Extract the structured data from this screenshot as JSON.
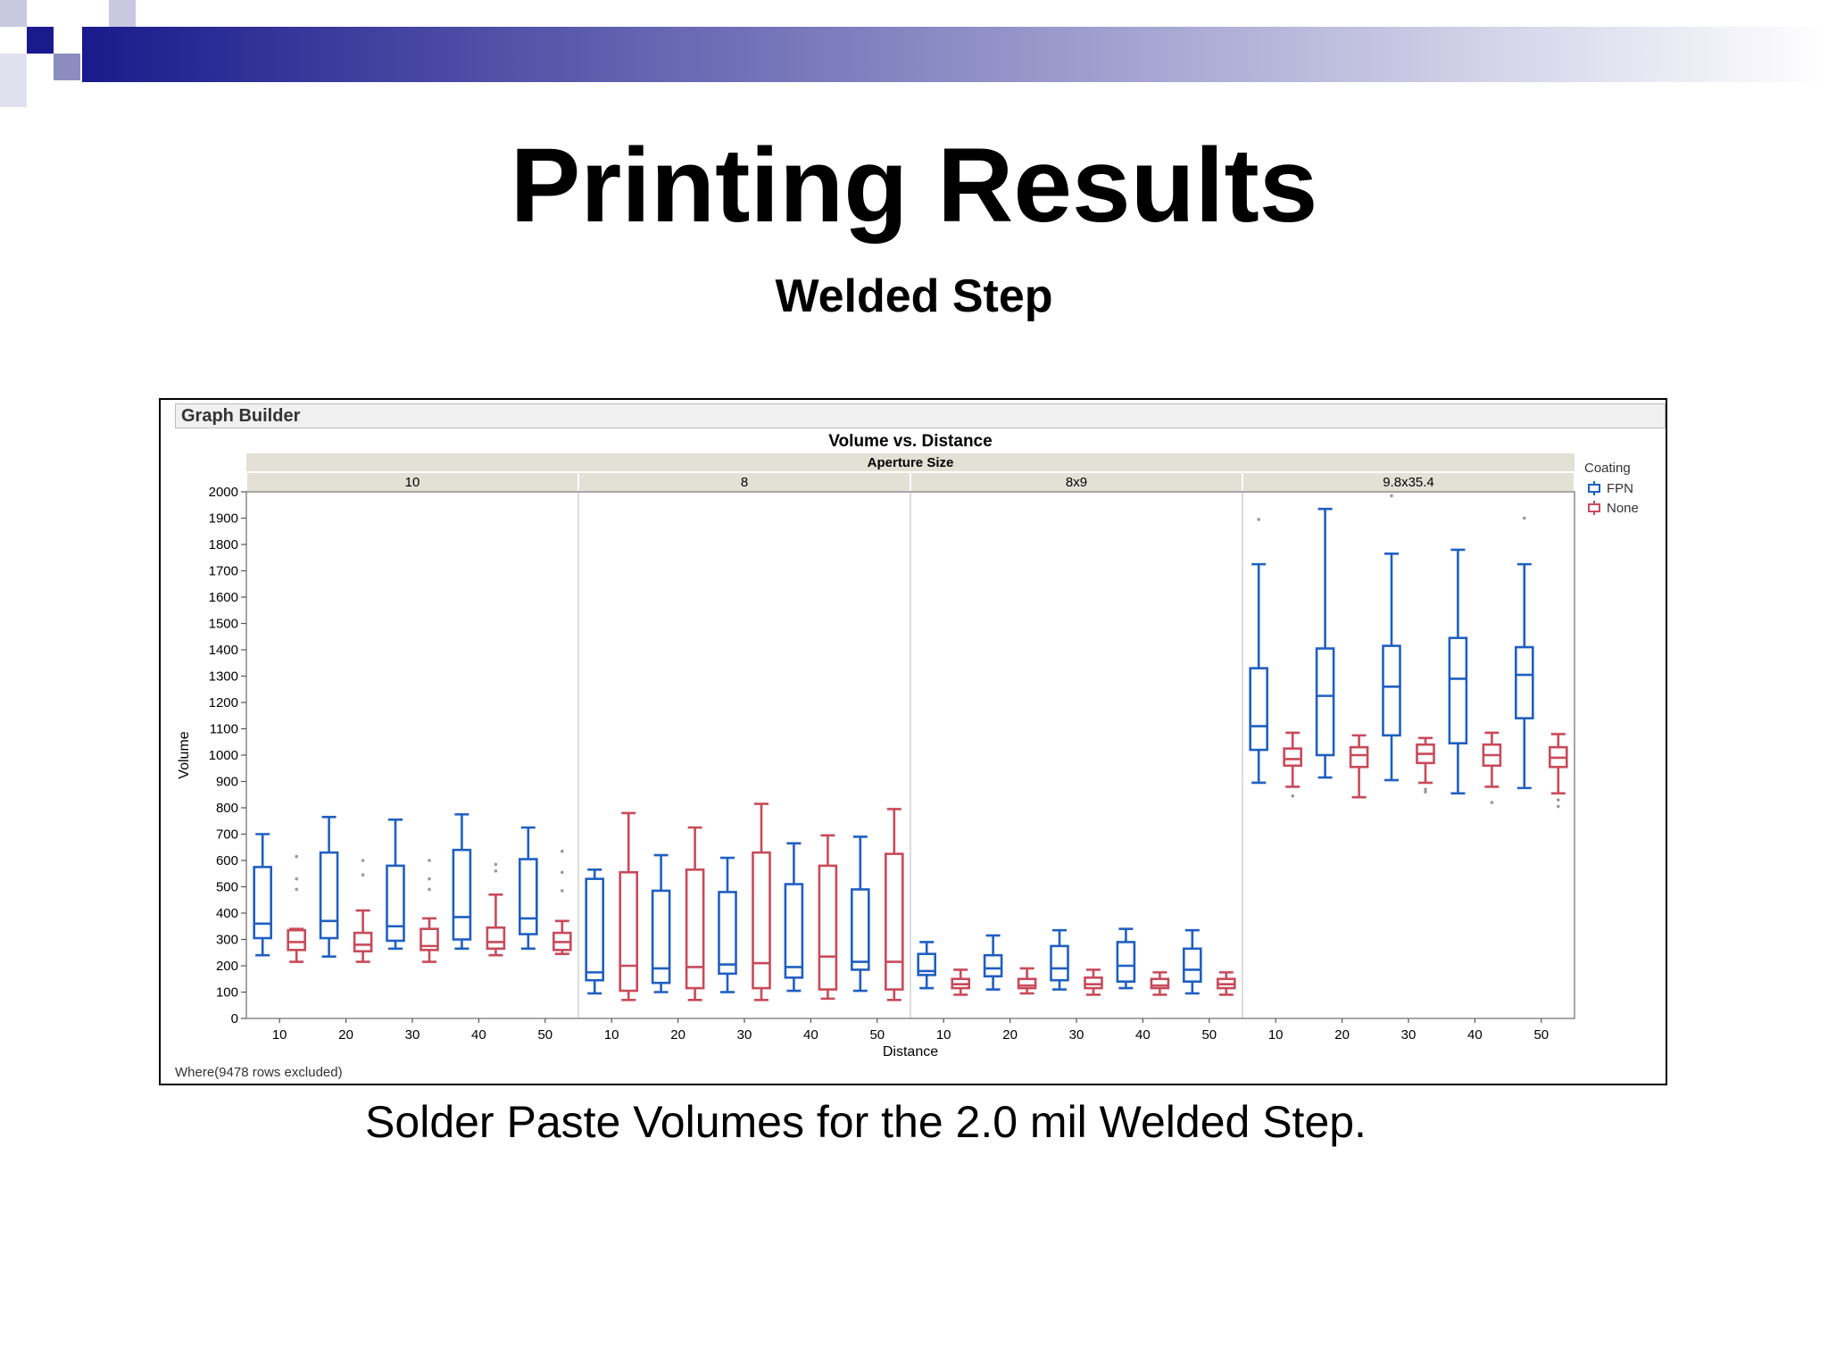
{
  "slide": {
    "title": "Printing Results",
    "subtitle": "Welded Step",
    "caption": "Solder Paste Volumes for the 2.0 mil Welded Step."
  },
  "graph_builder": {
    "header": "Graph Builder",
    "footer": "Where(9478 rows excluded)"
  },
  "colors": {
    "FPN": "#1f5fc1",
    "None": "#c84a5a",
    "strip": "#e3e0d5",
    "deco_dark": "#1a1a8c"
  },
  "chart_data": {
    "type": "boxplot",
    "title": "Volume vs. Distance",
    "group_label": "Aperture Size",
    "xlabel": "Distance",
    "ylabel": "Volume",
    "ylim": [
      0,
      2000
    ],
    "yticks": [
      0,
      100,
      200,
      300,
      400,
      500,
      600,
      700,
      800,
      900,
      1000,
      1100,
      1200,
      1300,
      1400,
      1500,
      1600,
      1700,
      1800,
      1900,
      2000
    ],
    "distances": [
      "10",
      "20",
      "30",
      "40",
      "50"
    ],
    "legend": {
      "title": "Coating",
      "items": [
        "FPN",
        "None"
      ],
      "position": "right"
    },
    "groups": [
      {
        "name": "10",
        "FPN": [
          {
            "min": 240,
            "q1": 305,
            "median": 360,
            "q3": 575,
            "max": 700
          },
          {
            "min": 235,
            "q1": 305,
            "median": 370,
            "q3": 630,
            "max": 765
          },
          {
            "min": 265,
            "q1": 295,
            "median": 350,
            "q3": 580,
            "max": 755
          },
          {
            "min": 265,
            "q1": 300,
            "median": 385,
            "q3": 640,
            "max": 775
          },
          {
            "min": 265,
            "q1": 320,
            "median": 380,
            "q3": 605,
            "max": 725
          }
        ],
        "None": [
          {
            "min": 215,
            "q1": 260,
            "median": 290,
            "q3": 335,
            "max": 340,
            "outliers": [
              490,
              530,
              615
            ]
          },
          {
            "min": 215,
            "q1": 255,
            "median": 280,
            "q3": 325,
            "max": 410,
            "outliers": [
              545,
              600
            ]
          },
          {
            "min": 215,
            "q1": 260,
            "median": 275,
            "q3": 340,
            "max": 380,
            "outliers": [
              490,
              530,
              600
            ]
          },
          {
            "min": 240,
            "q1": 265,
            "median": 290,
            "q3": 345,
            "max": 470,
            "outliers": [
              560,
              585
            ]
          },
          {
            "min": 245,
            "q1": 260,
            "median": 290,
            "q3": 325,
            "max": 370,
            "outliers": [
              485,
              555,
              635
            ]
          }
        ]
      },
      {
        "name": "8",
        "FPN": [
          {
            "min": 95,
            "q1": 145,
            "median": 175,
            "q3": 530,
            "max": 565
          },
          {
            "min": 100,
            "q1": 135,
            "median": 190,
            "q3": 485,
            "max": 620
          },
          {
            "min": 100,
            "q1": 170,
            "median": 205,
            "q3": 480,
            "max": 610
          },
          {
            "min": 105,
            "q1": 155,
            "median": 195,
            "q3": 510,
            "max": 665
          },
          {
            "min": 105,
            "q1": 185,
            "median": 215,
            "q3": 490,
            "max": 690
          }
        ],
        "None": [
          {
            "min": 70,
            "q1": 105,
            "median": 200,
            "q3": 555,
            "max": 780
          },
          {
            "min": 70,
            "q1": 115,
            "median": 195,
            "q3": 565,
            "max": 725
          },
          {
            "min": 70,
            "q1": 115,
            "median": 210,
            "q3": 630,
            "max": 815
          },
          {
            "min": 75,
            "q1": 110,
            "median": 235,
            "q3": 580,
            "max": 695
          },
          {
            "min": 70,
            "q1": 110,
            "median": 215,
            "q3": 625,
            "max": 795
          }
        ]
      },
      {
        "name": "8x9",
        "FPN": [
          {
            "min": 115,
            "q1": 165,
            "median": 180,
            "q3": 245,
            "max": 290
          },
          {
            "min": 110,
            "q1": 160,
            "median": 190,
            "q3": 240,
            "max": 315
          },
          {
            "min": 110,
            "q1": 145,
            "median": 190,
            "q3": 275,
            "max": 335
          },
          {
            "min": 115,
            "q1": 140,
            "median": 200,
            "q3": 290,
            "max": 340
          },
          {
            "min": 95,
            "q1": 140,
            "median": 185,
            "q3": 265,
            "max": 335
          }
        ],
        "None": [
          {
            "min": 90,
            "q1": 115,
            "median": 130,
            "q3": 150,
            "max": 185
          },
          {
            "min": 95,
            "q1": 115,
            "median": 125,
            "q3": 150,
            "max": 190
          },
          {
            "min": 90,
            "q1": 115,
            "median": 130,
            "q3": 155,
            "max": 185
          },
          {
            "min": 90,
            "q1": 115,
            "median": 125,
            "q3": 150,
            "max": 175
          },
          {
            "min": 90,
            "q1": 115,
            "median": 130,
            "q3": 150,
            "max": 175
          }
        ]
      },
      {
        "name": "9.8x35.4",
        "FPN": [
          {
            "min": 895,
            "q1": 1020,
            "median": 1110,
            "q3": 1330,
            "max": 1725,
            "outliers": [
              1895
            ]
          },
          {
            "min": 915,
            "q1": 1000,
            "median": 1225,
            "q3": 1405,
            "max": 1935
          },
          {
            "min": 905,
            "q1": 1075,
            "median": 1260,
            "q3": 1415,
            "max": 1765,
            "outliers": [
              1985
            ]
          },
          {
            "min": 855,
            "q1": 1045,
            "median": 1290,
            "q3": 1445,
            "max": 1780
          },
          {
            "min": 875,
            "q1": 1140,
            "median": 1305,
            "q3": 1410,
            "max": 1725,
            "outliers": [
              1900
            ]
          }
        ],
        "None": [
          {
            "min": 880,
            "q1": 960,
            "median": 985,
            "q3": 1025,
            "max": 1085,
            "outliers": [
              845
            ]
          },
          {
            "min": 840,
            "q1": 955,
            "median": 1000,
            "q3": 1030,
            "max": 1075
          },
          {
            "min": 895,
            "q1": 970,
            "median": 1005,
            "q3": 1040,
            "max": 1065,
            "outliers": [
              860,
              870
            ]
          },
          {
            "min": 880,
            "q1": 960,
            "median": 1000,
            "q3": 1040,
            "max": 1085,
            "outliers": [
              820
            ]
          },
          {
            "min": 855,
            "q1": 955,
            "median": 990,
            "q3": 1030,
            "max": 1080,
            "outliers": [
              805,
              830
            ]
          }
        ]
      }
    ]
  }
}
